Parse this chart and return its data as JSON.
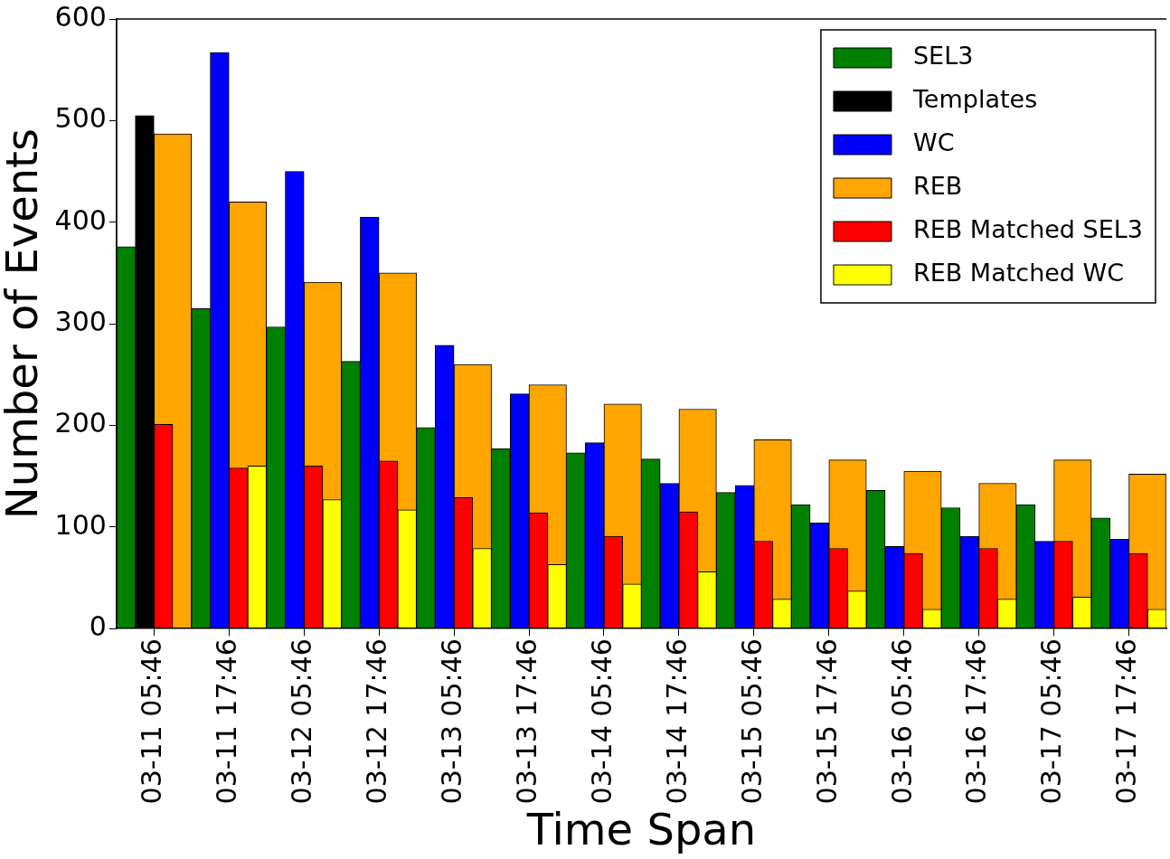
{
  "chart_data": {
    "type": "bar",
    "xlabel": "Time Span",
    "ylabel": "Number of Events",
    "categories": [
      "03-11 05:46",
      "03-11 17:46",
      "03-12 05:46",
      "03-12 17:46",
      "03-13 05:46",
      "03-13 17:46",
      "03-14 05:46",
      "03-14 17:46",
      "03-15 05:46",
      "03-15 17:46",
      "03-16 05:46",
      "03-16 17:46",
      "03-17 05:46",
      "03-17 17:46"
    ],
    "series": [
      {
        "name": "SEL3",
        "color": "#008000",
        "values": [
          376,
          315,
          297,
          263,
          198,
          177,
          173,
          167,
          134,
          122,
          136,
          119,
          122,
          109
        ]
      },
      {
        "name": "Templates",
        "color": "#000000",
        "values": [
          505,
          null,
          null,
          null,
          null,
          null,
          null,
          null,
          null,
          null,
          null,
          null,
          null,
          null
        ]
      },
      {
        "name": "WC",
        "color": "#0000ff",
        "values": [
          null,
          567,
          450,
          405,
          279,
          231,
          183,
          143,
          141,
          104,
          81,
          91,
          86,
          88
        ]
      },
      {
        "name": "REB",
        "color": "#ffa500",
        "values": [
          487,
          420,
          341,
          350,
          260,
          240,
          221,
          216,
          186,
          166,
          155,
          143,
          166,
          152
        ]
      },
      {
        "name": "REB Matched SEL3",
        "color": "#ff0000",
        "values": [
          201,
          158,
          160,
          165,
          129,
          114,
          91,
          115,
          86,
          79,
          74,
          79,
          86,
          74
        ]
      },
      {
        "name": "REB Matched WC",
        "color": "#ffff00",
        "values": [
          null,
          160,
          127,
          117,
          79,
          63,
          44,
          56,
          29,
          37,
          19,
          29,
          31,
          19
        ]
      }
    ],
    "ylim": [
      0,
      600
    ],
    "yticks": [
      0,
      100,
      200,
      300,
      400,
      500,
      600
    ],
    "legend": "top right"
  }
}
